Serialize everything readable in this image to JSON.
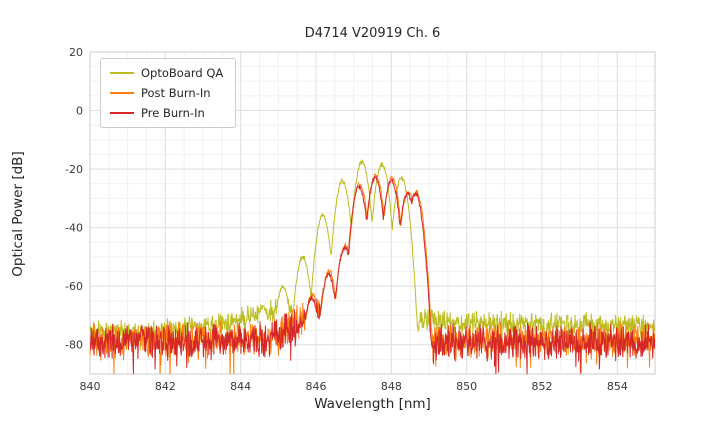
{
  "chart_data": {
    "type": "line",
    "title": "D4714 V20919 Ch. 6",
    "xlabel": "Wavelength [nm]",
    "ylabel": "Optical Power [dB]",
    "xlim": [
      840,
      855
    ],
    "ylim": [
      -90,
      20
    ],
    "xticks": [
      840,
      842,
      844,
      846,
      848,
      850,
      852,
      854
    ],
    "yticks": [
      -80,
      -60,
      -40,
      -20,
      0,
      20
    ],
    "x_minor_step": 0.5,
    "y_minor_step": 5,
    "grid": true,
    "legend_position": "upper left",
    "lobe_sharpness_db_per_nm2": 290,
    "series": [
      {
        "name": "OptoBoard QA",
        "color": "#bcbd22",
        "seed": 11,
        "noise_amp_db": 4.5,
        "spike_prob": 0.06,
        "spike_depth_db": 8,
        "floor_profile": [
          [
            840,
            -75.5
          ],
          [
            842,
            -75
          ],
          [
            843.2,
            -73.5
          ],
          [
            844.2,
            -70.5
          ],
          [
            844.9,
            -68.5
          ],
          [
            845.4,
            -68.8
          ],
          [
            846,
            -70
          ],
          [
            848.6,
            -71.5
          ],
          [
            850,
            -72.5
          ],
          [
            855,
            -73.5
          ]
        ],
        "peaks": [
          [
            844.6,
            -67
          ],
          [
            845.12,
            -60
          ],
          [
            845.65,
            -50
          ],
          [
            846.18,
            -36
          ],
          [
            846.7,
            -24
          ],
          [
            847.22,
            -17.5
          ],
          [
            847.75,
            -18.5
          ],
          [
            848.27,
            -23
          ]
        ]
      },
      {
        "name": "Post Burn-In",
        "color": "#ff7f0e",
        "seed": 23,
        "noise_amp_db": 6.5,
        "spike_prob": 0.07,
        "spike_depth_db": 9,
        "floor_profile": [
          [
            840,
            -78.5
          ],
          [
            844.6,
            -78
          ],
          [
            845.3,
            -73.5
          ],
          [
            845.9,
            -70
          ],
          [
            846.4,
            -68.5
          ],
          [
            847,
            -71.5
          ],
          [
            848.85,
            -73.5
          ],
          [
            849.05,
            -78.5
          ],
          [
            855,
            -78.5
          ]
        ],
        "peaks": [
          [
            845.9,
            -63
          ],
          [
            846.35,
            -55
          ],
          [
            846.78,
            -46
          ],
          [
            847.16,
            -25
          ],
          [
            847.59,
            -22.3
          ],
          [
            848.02,
            -23.2
          ],
          [
            848.45,
            -27.8
          ],
          [
            848.66,
            -27.8
          ]
        ]
      },
      {
        "name": "Pre Burn-In",
        "color": "#d62728",
        "seed": 37,
        "noise_amp_db": 7,
        "spike_prob": 0.07,
        "spike_depth_db": 9,
        "floor_profile": [
          [
            840,
            -79
          ],
          [
            844.6,
            -78.5
          ],
          [
            845.3,
            -74
          ],
          [
            845.9,
            -70.5
          ],
          [
            846.4,
            -69
          ],
          [
            847,
            -72
          ],
          [
            848.85,
            -74
          ],
          [
            849.05,
            -79
          ],
          [
            855,
            -79
          ]
        ],
        "peaks": [
          [
            845.88,
            -64
          ],
          [
            846.33,
            -56
          ],
          [
            846.76,
            -47
          ],
          [
            847.14,
            -26
          ],
          [
            847.57,
            -23
          ],
          [
            848.0,
            -24
          ],
          [
            848.43,
            -28.5
          ],
          [
            848.64,
            -28.5
          ]
        ]
      }
    ]
  },
  "style": {
    "grid_major_color": "#e0e0e0",
    "grid_minor_color": "#f1f1f1",
    "spine_color": "#cccccc",
    "tick_label_color": "#3a3a3a",
    "background": "#ffffff"
  }
}
